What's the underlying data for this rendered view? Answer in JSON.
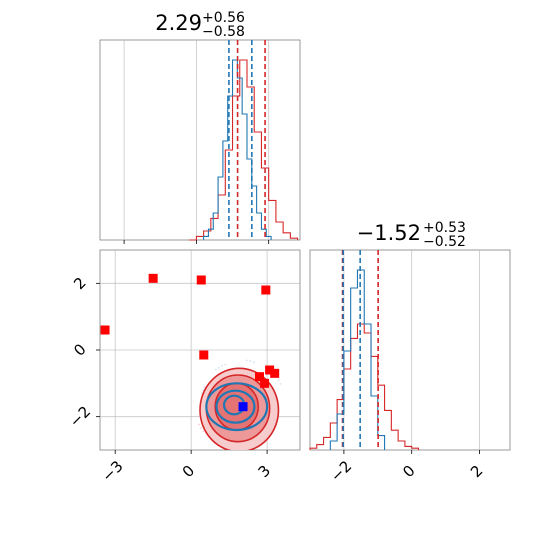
{
  "chart_data": {
    "type": "corner",
    "parameters": [
      "param_0",
      "param_1"
    ],
    "colors": {
      "red": "#d62728",
      "blue": "#1f77b4",
      "marker_red": "#ff0000",
      "marker_blue": "#0000ff",
      "grid": "#b0b0b0",
      "axes": "#808080"
    },
    "grid": true,
    "panels": [
      {
        "id": "hist-0",
        "type": "histogram",
        "title": {
          "median": "2.29",
          "upper": "+0.56",
          "lower": "−0.58"
        },
        "xlim": [
          -4.0,
          4.3
        ],
        "xticks": [
          -3,
          0,
          3
        ],
        "histograms": [
          {
            "color": "red",
            "bin_edges": [
              -0.3,
              0.0,
              0.3,
              0.6,
              0.9,
              1.2,
              1.5,
              1.8,
              2.1,
              2.4,
              2.7,
              3.0,
              3.3,
              3.6,
              3.9,
              4.2
            ],
            "density": [
              0.0,
              0.02,
              0.05,
              0.12,
              0.25,
              0.5,
              0.8,
              1.0,
              0.85,
              0.6,
              0.4,
              0.22,
              0.1,
              0.04,
              0.01
            ]
          },
          {
            "color": "blue",
            "bin_edges": [
              0.3,
              0.5,
              0.7,
              0.9,
              1.1,
              1.3,
              1.5,
              1.7,
              1.9,
              2.1,
              2.3,
              2.5,
              2.7,
              2.9,
              3.1
            ],
            "density": [
              0.02,
              0.06,
              0.15,
              0.35,
              0.55,
              0.8,
              1.0,
              0.9,
              0.7,
              0.45,
              0.3,
              0.15,
              0.06,
              0.02
            ]
          }
        ],
        "quantile_lines": [
          {
            "color": "blue",
            "value": 1.35
          },
          {
            "color": "red",
            "value": 1.71
          },
          {
            "color": "blue",
            "value": 2.3
          },
          {
            "color": "red",
            "value": 2.85
          }
        ]
      },
      {
        "id": "hist-1",
        "type": "histogram",
        "title": {
          "median": "−1.52",
          "upper": "+0.53",
          "lower": "−0.52"
        },
        "xlim": [
          -3.0,
          2.9
        ],
        "xticks": [
          -2,
          0,
          2
        ],
        "histograms": [
          {
            "color": "red",
            "bin_edges": [
              -3.0,
              -2.8,
              -2.6,
              -2.4,
              -2.2,
              -2.0,
              -1.8,
              -1.6,
              -1.4,
              -1.2,
              -1.0,
              -0.8,
              -0.6,
              -0.4,
              -0.2,
              0.0,
              0.2
            ],
            "density": [
              0.01,
              0.03,
              0.07,
              0.15,
              0.28,
              0.45,
              0.62,
              0.7,
              0.65,
              0.52,
              0.36,
              0.22,
              0.11,
              0.05,
              0.02,
              0.01
            ]
          },
          {
            "color": "blue",
            "bin_edges": [
              -2.4,
              -2.2,
              -2.0,
              -1.8,
              -1.6,
              -1.4,
              -1.2,
              -1.0,
              -0.8
            ],
            "density": [
              0.05,
              0.2,
              0.55,
              0.9,
              1.0,
              0.7,
              0.3,
              0.08
            ]
          }
        ],
        "quantile_lines": [
          {
            "color": "red",
            "value": -2.04
          },
          {
            "color": "blue",
            "value": -2.02
          },
          {
            "color": "blue",
            "value": -1.52
          },
          {
            "color": "red",
            "value": -0.99
          }
        ]
      },
      {
        "id": "scatter-01",
        "type": "2d",
        "xlim": [
          -3.6,
          4.3
        ],
        "ylim": [
          -3.0,
          3.0
        ],
        "xticks": [
          -3,
          0,
          3
        ],
        "yticks": [
          -2,
          0,
          2
        ],
        "contours_red": [
          {
            "cx": 1.9,
            "cy": -1.8,
            "rx": 1.55,
            "ry": 1.25
          },
          {
            "cx": 1.85,
            "cy": -1.75,
            "rx": 1.25,
            "ry": 1.0
          },
          {
            "cx": 1.8,
            "cy": -1.7,
            "rx": 0.85,
            "ry": 0.7
          }
        ],
        "contours_blue": [
          {
            "cx": 1.8,
            "cy": -1.7,
            "rx": 1.2,
            "ry": 0.7
          },
          {
            "cx": 1.75,
            "cy": -1.7,
            "rx": 0.75,
            "ry": 0.48
          },
          {
            "cx": 1.7,
            "cy": -1.65,
            "rx": 0.4,
            "ry": 0.28
          }
        ],
        "red_markers": [
          {
            "x": -3.4,
            "y": 0.6
          },
          {
            "x": -1.5,
            "y": 2.15
          },
          {
            "x": 0.4,
            "y": 2.1
          },
          {
            "x": 0.5,
            "y": -0.15
          },
          {
            "x": 2.95,
            "y": 1.8
          },
          {
            "x": 3.1,
            "y": -0.6
          },
          {
            "x": 3.3,
            "y": -0.7
          },
          {
            "x": 2.9,
            "y": -1.0
          },
          {
            "x": 2.7,
            "y": -0.8
          }
        ],
        "blue_marker": {
          "x": 2.05,
          "y": -1.7
        }
      }
    ]
  }
}
